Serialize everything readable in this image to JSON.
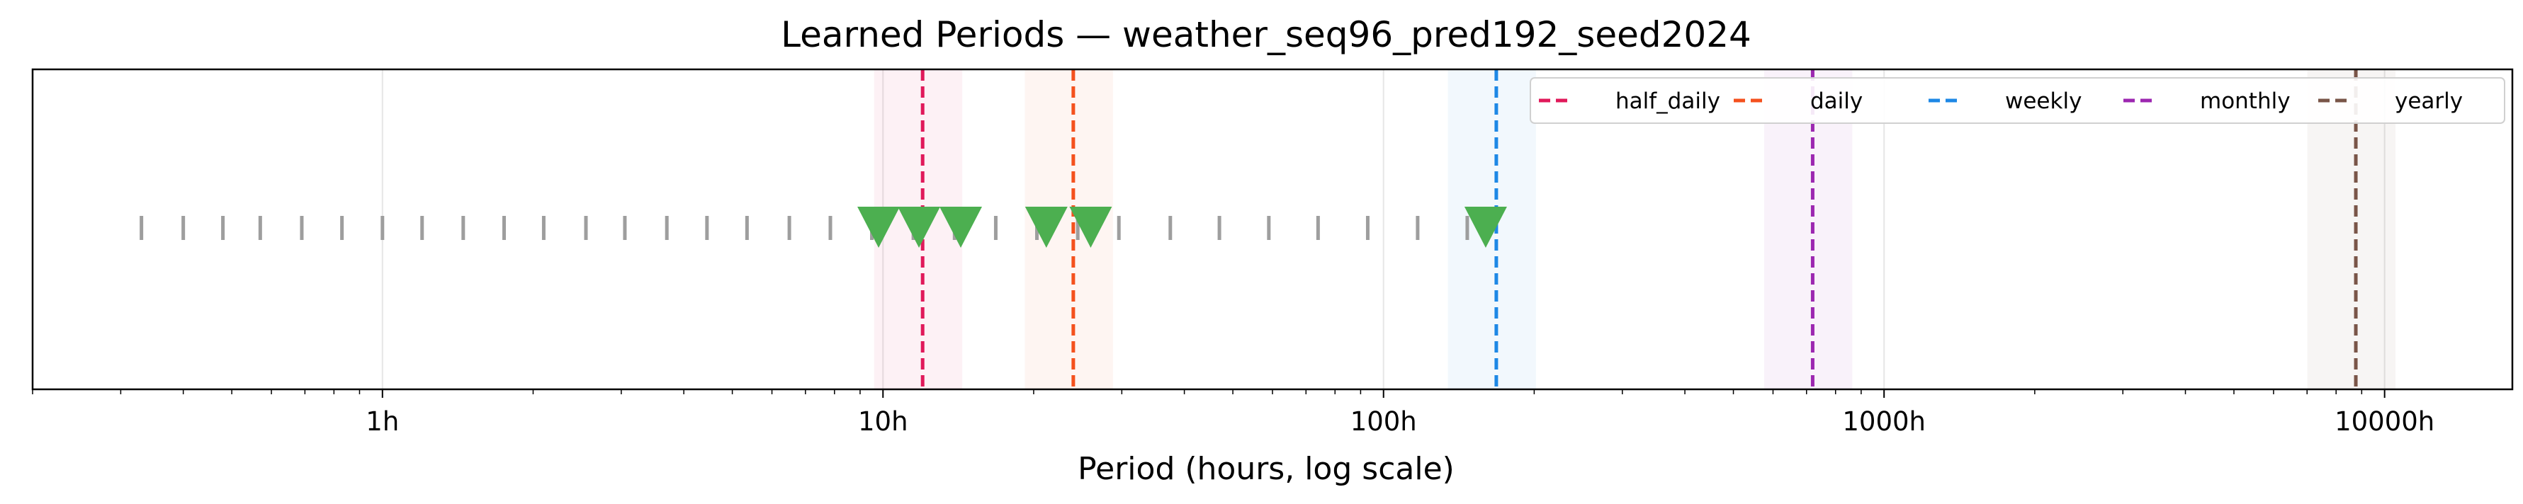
{
  "chart_data": {
    "type": "scatter",
    "title": "Learned Periods — weather_seq96_pred192_seed2024",
    "xlabel": "Period (hours, log scale)",
    "ylabel": "",
    "x_scale": "log",
    "xlim": [
      0.2,
      18000
    ],
    "grid": "x-major",
    "legend_position": "top-right",
    "tick_labels": [
      {
        "value": 1,
        "label": "1h"
      },
      {
        "value": 10,
        "label": "10h"
      },
      {
        "value": 100,
        "label": "100h"
      },
      {
        "value": 1000,
        "label": "1000h"
      },
      {
        "value": 10000,
        "label": "10000h"
      }
    ],
    "reference_periods": [
      {
        "name": "half_daily",
        "value": 12,
        "band": [
          9.6,
          14.4
        ],
        "color": "#e0195a"
      },
      {
        "name": "daily",
        "value": 24,
        "band": [
          19.2,
          28.8
        ],
        "color": "#f4511e"
      },
      {
        "name": "weekly",
        "value": 168,
        "band": [
          134.4,
          201.6
        ],
        "color": "#1e88e5"
      },
      {
        "name": "monthly",
        "value": 720,
        "band": [
          576,
          864
        ],
        "color": "#9c27b0"
      },
      {
        "name": "yearly",
        "value": 8760,
        "band": [
          7008,
          10512
        ],
        "color": "#795548"
      }
    ],
    "candidate_periods": {
      "color": "#9e9e9e",
      "values": [
        0.33,
        0.4,
        0.48,
        0.57,
        0.69,
        0.83,
        1.0,
        1.2,
        1.45,
        1.75,
        2.1,
        2.55,
        3.05,
        3.7,
        4.45,
        5.35,
        6.5,
        7.85,
        9.5,
        11.5,
        13.9,
        16.8,
        20.3,
        24.5,
        29.6,
        37.5,
        47,
        59,
        74,
        93,
        117,
        147
      ]
    },
    "learned_periods": {
      "color": "#4caf50",
      "marker": "triangle-down",
      "values": [
        9.8,
        11.8,
        14.3,
        21.2,
        26.0,
        160
      ]
    }
  }
}
